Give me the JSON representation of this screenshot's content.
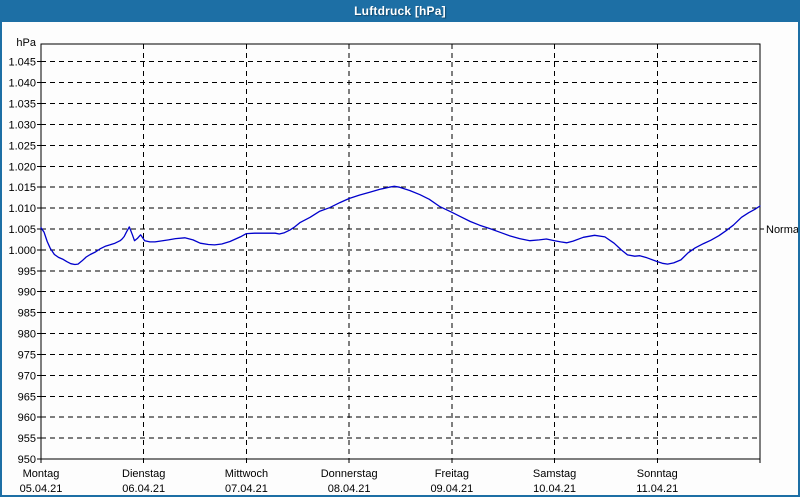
{
  "window": {
    "title": "Luftdruck [hPa]"
  },
  "chart_data": {
    "type": "line",
    "title": "Luftdruck [hPa]",
    "unit_label": "hPa",
    "grid": "dashed",
    "legend_position": "none",
    "ylim": [
      950,
      1045
    ],
    "ytick_step": 5,
    "yticks": [
      {
        "value": 1045,
        "label": "1.045"
      },
      {
        "value": 1040,
        "label": "1.040"
      },
      {
        "value": 1035,
        "label": "1.035"
      },
      {
        "value": 1030,
        "label": "1.030"
      },
      {
        "value": 1025,
        "label": "1.025"
      },
      {
        "value": 1020,
        "label": "1.020"
      },
      {
        "value": 1015,
        "label": "1.015"
      },
      {
        "value": 1010,
        "label": "1.010"
      },
      {
        "value": 1005,
        "label": "1.005"
      },
      {
        "value": 1000,
        "label": "1.000"
      },
      {
        "value": 995,
        "label": "995"
      },
      {
        "value": 990,
        "label": "990"
      },
      {
        "value": 985,
        "label": "985"
      },
      {
        "value": 980,
        "label": "980"
      },
      {
        "value": 975,
        "label": "975"
      },
      {
        "value": 970,
        "label": "970"
      },
      {
        "value": 965,
        "label": "965"
      },
      {
        "value": 960,
        "label": "960"
      },
      {
        "value": 955,
        "label": "955"
      },
      {
        "value": 950,
        "label": "950"
      }
    ],
    "days": [
      {
        "name": "Montag",
        "date": "05.04.21"
      },
      {
        "name": "Dienstag",
        "date": "06.04.21"
      },
      {
        "name": "Mittwoch",
        "date": "07.04.21"
      },
      {
        "name": "Donnerstag",
        "date": "08.04.21"
      },
      {
        "name": "Freitag",
        "date": "09.04.21"
      },
      {
        "name": "Samstag",
        "date": "10.04.21"
      },
      {
        "name": "Sonntag",
        "date": "11.04.21"
      }
    ],
    "annotations": [
      {
        "label": "Normal",
        "value": 1005,
        "side": "right"
      }
    ],
    "series": [
      {
        "name": "Luftdruck",
        "color": "#0000cc",
        "x_unit": "days_from_05.04.21",
        "points": [
          [
            0.0,
            1005.3
          ],
          [
            0.03,
            1004.2
          ],
          [
            0.06,
            1002.0
          ],
          [
            0.09,
            1000.4
          ],
          [
            0.13,
            998.9
          ],
          [
            0.17,
            998.2
          ],
          [
            0.21,
            997.8
          ],
          [
            0.25,
            997.2
          ],
          [
            0.29,
            996.7
          ],
          [
            0.33,
            996.5
          ],
          [
            0.36,
            996.6
          ],
          [
            0.4,
            997.4
          ],
          [
            0.44,
            998.3
          ],
          [
            0.48,
            998.9
          ],
          [
            0.53,
            999.5
          ],
          [
            0.58,
            1000.3
          ],
          [
            0.63,
            1000.9
          ],
          [
            0.67,
            1001.2
          ],
          [
            0.72,
            1001.6
          ],
          [
            0.77,
            1002.2
          ],
          [
            0.79,
            1002.6
          ],
          [
            0.81,
            1003.2
          ],
          [
            0.83,
            1004.2
          ],
          [
            0.86,
            1005.5
          ],
          [
            0.89,
            1003.6
          ],
          [
            0.91,
            1002.2
          ],
          [
            0.94,
            1002.8
          ],
          [
            0.97,
            1003.6
          ],
          [
            1.01,
            1002.2
          ],
          [
            1.06,
            1001.9
          ],
          [
            1.11,
            1001.9
          ],
          [
            1.16,
            1002.1
          ],
          [
            1.24,
            1002.4
          ],
          [
            1.31,
            1002.7
          ],
          [
            1.4,
            1002.9
          ],
          [
            1.48,
            1002.4
          ],
          [
            1.55,
            1001.6
          ],
          [
            1.63,
            1001.3
          ],
          [
            1.69,
            1001.2
          ],
          [
            1.76,
            1001.4
          ],
          [
            1.84,
            1002.0
          ],
          [
            1.94,
            1003.1
          ],
          [
            2.0,
            1003.9
          ],
          [
            2.08,
            1004.0
          ],
          [
            2.18,
            1004.0
          ],
          [
            2.28,
            1004.0
          ],
          [
            2.32,
            1003.8
          ],
          [
            2.37,
            1004.1
          ],
          [
            2.42,
            1004.7
          ],
          [
            2.47,
            1005.5
          ],
          [
            2.52,
            1006.5
          ],
          [
            2.62,
            1007.8
          ],
          [
            2.71,
            1009.2
          ],
          [
            2.81,
            1010.1
          ],
          [
            2.91,
            1011.3
          ],
          [
            3.0,
            1012.3
          ],
          [
            3.1,
            1013.1
          ],
          [
            3.2,
            1013.8
          ],
          [
            3.3,
            1014.5
          ],
          [
            3.39,
            1015.0
          ],
          [
            3.44,
            1015.2
          ],
          [
            3.49,
            1015.0
          ],
          [
            3.59,
            1014.2
          ],
          [
            3.69,
            1013.2
          ],
          [
            3.78,
            1012.1
          ],
          [
            3.88,
            1010.4
          ],
          [
            4.0,
            1009.0
          ],
          [
            4.08,
            1008.0
          ],
          [
            4.18,
            1006.8
          ],
          [
            4.27,
            1005.9
          ],
          [
            4.37,
            1005.1
          ],
          [
            4.47,
            1004.2
          ],
          [
            4.56,
            1003.4
          ],
          [
            4.66,
            1002.7
          ],
          [
            4.76,
            1002.2
          ],
          [
            4.85,
            1002.4
          ],
          [
            4.92,
            1002.6
          ],
          [
            5.0,
            1002.2
          ],
          [
            5.06,
            1001.9
          ],
          [
            5.12,
            1001.7
          ],
          [
            5.18,
            1002.1
          ],
          [
            5.28,
            1003.0
          ],
          [
            5.39,
            1003.5
          ],
          [
            5.49,
            1003.1
          ],
          [
            5.58,
            1001.6
          ],
          [
            5.65,
            1000.0
          ],
          [
            5.71,
            998.8
          ],
          [
            5.78,
            998.5
          ],
          [
            5.83,
            998.6
          ],
          [
            5.9,
            998.1
          ],
          [
            6.0,
            997.2
          ],
          [
            6.05,
            996.8
          ],
          [
            6.1,
            996.6
          ],
          [
            6.16,
            996.9
          ],
          [
            6.23,
            997.6
          ],
          [
            6.3,
            999.3
          ],
          [
            6.37,
            1000.5
          ],
          [
            6.45,
            1001.5
          ],
          [
            6.52,
            1002.3
          ],
          [
            6.6,
            1003.4
          ],
          [
            6.67,
            1004.6
          ],
          [
            6.74,
            1005.9
          ],
          [
            6.82,
            1007.8
          ],
          [
            6.89,
            1008.9
          ],
          [
            6.95,
            1009.7
          ],
          [
            7.0,
            1010.5
          ]
        ]
      }
    ],
    "colors": {
      "titlebar": "#1d6fa5",
      "border": "#1d6fa5",
      "grid": "#000000",
      "axis": "#000000",
      "text": "#000000",
      "curve": "#0000cc",
      "plot_background": "#fdfdfd"
    }
  }
}
